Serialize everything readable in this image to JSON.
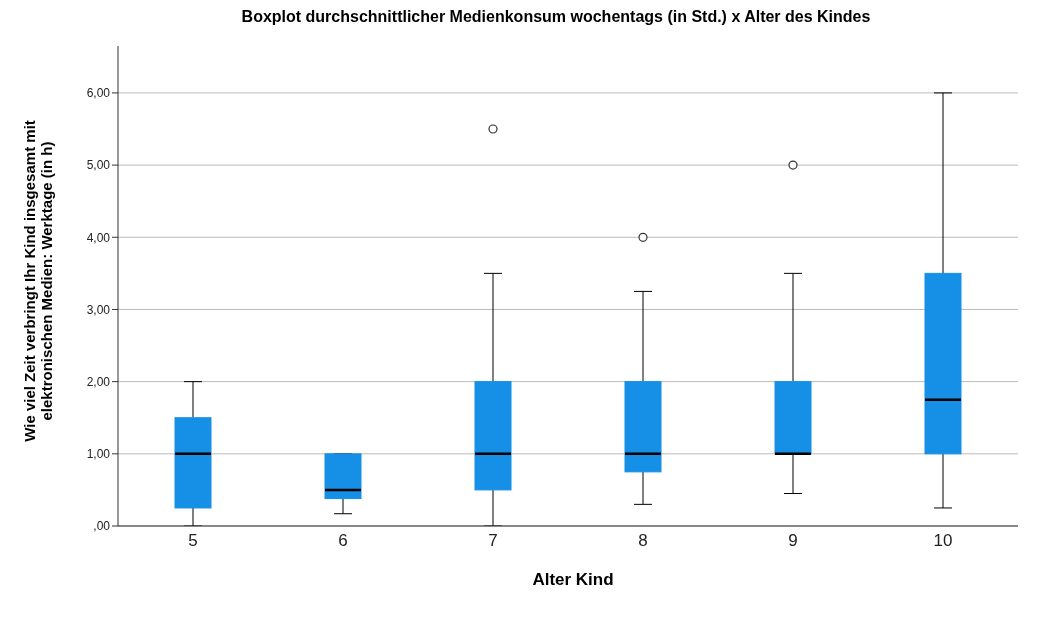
{
  "chart_data": {
    "type": "box",
    "title": "Boxplot durchschnittlicher Medienkonsum wochentags (in Std.) x Alter des Kindes",
    "xlabel": "Alter Kind",
    "ylabel": "Wie viel Zeit verbringt Ihr Kind insgesamt mit elektronischen Medien: Werktage (in h)",
    "categories": [
      "5",
      "6",
      "7",
      "8",
      "9",
      "10"
    ],
    "color": "#1590e6",
    "boxes": [
      {
        "low": 0,
        "q1": 0.25,
        "median": 1,
        "q3": 1.5,
        "high": 2
      },
      {
        "low": 0.17,
        "q1": 0.38,
        "median": 0.5,
        "q3": 1,
        "high": 1
      },
      {
        "low": 0,
        "q1": 0.5,
        "median": 1,
        "q3": 2,
        "high": 3.5,
        "outliers": [
          5.5
        ]
      },
      {
        "low": 0.3,
        "q1": 0.75,
        "median": 1,
        "q3": 2,
        "high": 3.25,
        "outliers": [
          4
        ]
      },
      {
        "low": 0.45,
        "q1": 1,
        "median": 1,
        "q3": 2,
        "high": 3.5,
        "outliers": [
          5
        ]
      },
      {
        "low": 0.25,
        "q1": 1,
        "median": 1.75,
        "q3": 3.5,
        "high": 6
      }
    ],
    "ylim": [
      0,
      6.65
    ],
    "yticks": [
      {
        "value": 0,
        "label": ",00"
      },
      {
        "value": 1,
        "label": "1,00"
      },
      {
        "value": 2,
        "label": "2,00"
      },
      {
        "value": 3,
        "label": "3,00"
      },
      {
        "value": 4,
        "label": "4,00"
      },
      {
        "value": 5,
        "label": "5,00"
      },
      {
        "value": 6,
        "label": "6,00"
      }
    ],
    "grid": "y"
  }
}
